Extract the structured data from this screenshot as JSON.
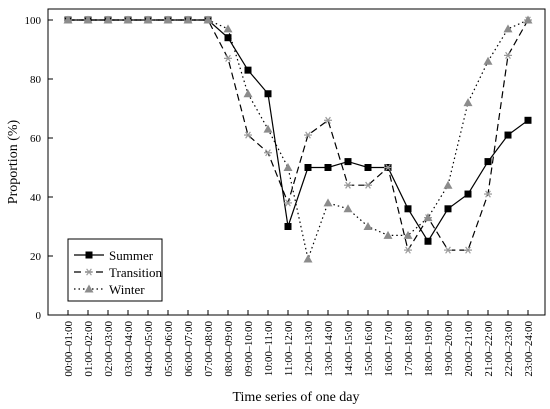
{
  "chart_data": {
    "type": "line",
    "xlabel": "Time series of one day",
    "ylabel": "Proportion (%)",
    "ylim": [
      0,
      100
    ],
    "yticks": [
      0,
      20,
      40,
      60,
      80,
      100
    ],
    "grid": false,
    "legend_position": "bottom-left",
    "categories": [
      "00:00–01:00",
      "01:00–02:00",
      "02:00–03:00",
      "03:00–04:00",
      "04:00–05:00",
      "05:00–06:00",
      "06:00–07:00",
      "07:00–08:00",
      "08:00–09:00",
      "09:00–10:00",
      "10:00–11:00",
      "11:00–12:00",
      "12:00–13:00",
      "13:00–14:00",
      "14:00–15:00",
      "15:00–16:00",
      "16:00–17:00",
      "17:00–18:00",
      "18:00–19:00",
      "19:00–20:00",
      "20:00–21:00",
      "21:00–22:00",
      "22:00–23:00",
      "23:00–24:00"
    ],
    "series": [
      {
        "name": "Summer",
        "line_style": "solid",
        "marker": "square",
        "color": "#000000",
        "values": [
          100,
          100,
          100,
          100,
          100,
          100,
          100,
          100,
          94,
          83,
          75,
          30,
          50,
          50,
          52,
          50,
          50,
          36,
          25,
          36,
          41,
          52,
          61,
          66
        ]
      },
      {
        "name": "Transition",
        "line_style": "dashed",
        "marker": "asterisk",
        "color": "#000000",
        "marker_color": "#999999",
        "values": [
          100,
          100,
          100,
          100,
          100,
          100,
          100,
          100,
          87,
          61,
          55,
          38,
          61,
          66,
          44,
          44,
          50,
          22,
          33,
          22,
          22,
          41,
          88,
          100
        ]
      },
      {
        "name": "Winter",
        "line_style": "dotted",
        "marker": "triangle",
        "color": "#000000",
        "marker_color": "#8c8c8c",
        "values": [
          100,
          100,
          100,
          100,
          100,
          100,
          100,
          100,
          97,
          75,
          63,
          50,
          19,
          38,
          36,
          30,
          27,
          27,
          33,
          44,
          72,
          86,
          97,
          100
        ]
      }
    ]
  }
}
